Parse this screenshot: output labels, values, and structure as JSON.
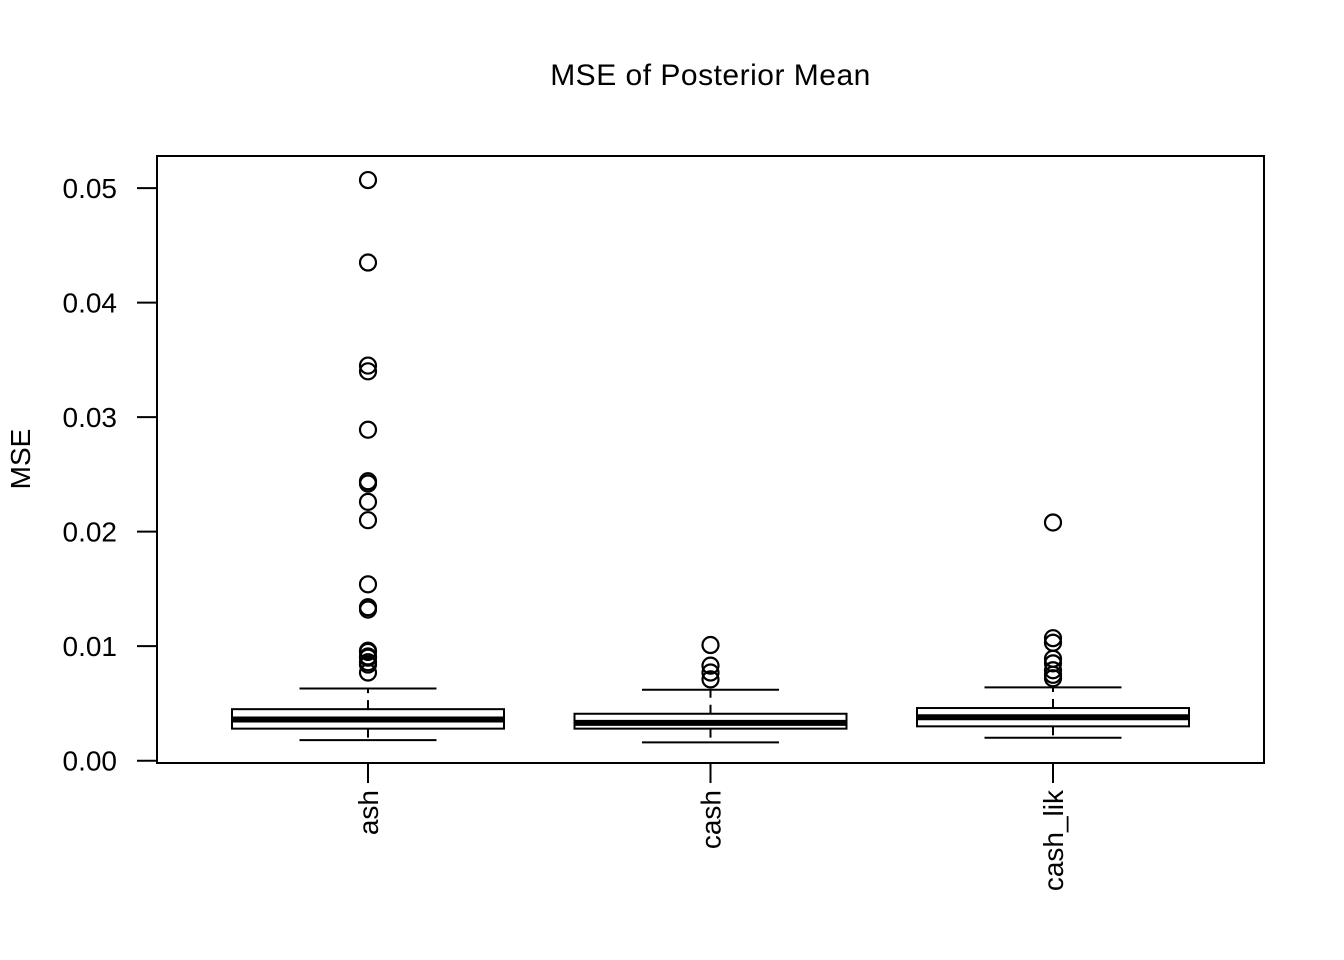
{
  "chart_data": {
    "type": "boxplot",
    "title": "MSE of Posterior Mean",
    "ylabel": "MSE",
    "xlabel": "",
    "categories": [
      "ash",
      "cash",
      "cash_lik"
    ],
    "y_ticks": {
      "values": [
        0,
        0.01,
        0.02,
        0.03,
        0.04,
        0.05
      ],
      "labels": [
        "0.00",
        "0.01",
        "0.02",
        "0.03",
        "0.04",
        "0.05"
      ]
    },
    "ylim": [
      -0.0002,
      0.0528
    ],
    "grid": false,
    "legend": "none",
    "colors": {
      "foreground": "#000000",
      "background": "#ffffff"
    },
    "series": [
      {
        "name": "ash",
        "whisker_low": 0.0018,
        "q1": 0.0028,
        "median": 0.0036,
        "q3": 0.0045,
        "whisker_high": 0.0063,
        "outliers": [
          0.0077,
          0.0084,
          0.0086,
          0.009,
          0.0091,
          0.0095,
          0.0096,
          0.0132,
          0.0134,
          0.0154,
          0.021,
          0.0226,
          0.0242,
          0.0244,
          0.0289,
          0.034,
          0.0345,
          0.0435,
          0.0507
        ]
      },
      {
        "name": "cash",
        "whisker_low": 0.0016,
        "q1": 0.0028,
        "median": 0.0033,
        "q3": 0.0041,
        "whisker_high": 0.0062,
        "outliers": [
          0.0071,
          0.0077,
          0.0083,
          0.0101
        ]
      },
      {
        "name": "cash_lik",
        "whisker_low": 0.002,
        "q1": 0.003,
        "median": 0.0038,
        "q3": 0.0046,
        "whisker_high": 0.0064,
        "outliers": [
          0.0072,
          0.0075,
          0.0079,
          0.0085,
          0.0089,
          0.0103,
          0.0107,
          0.0208
        ]
      }
    ]
  }
}
